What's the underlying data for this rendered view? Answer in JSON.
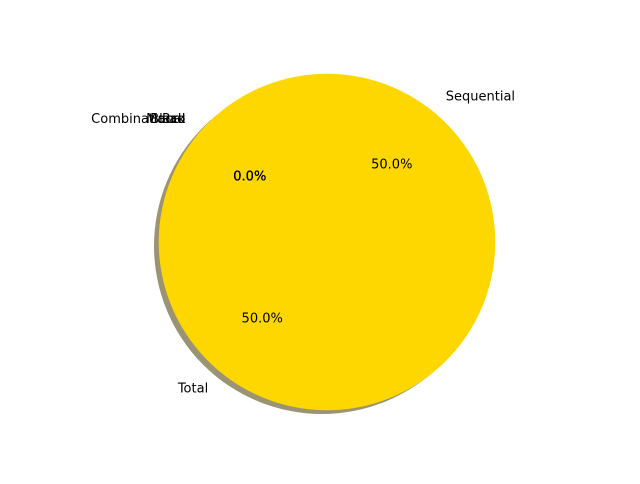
{
  "chart_data": {
    "type": "pie",
    "title": "",
    "shadow": true,
    "start_angle_deg": 140,
    "direction": "counterclockwise",
    "slices": [
      {
        "label": "Total",
        "value": 50.0,
        "pct_label": "50.0%",
        "color": "#ffd700"
      },
      {
        "label": "Sequential",
        "value": 50.0,
        "pct_label": "50.0%",
        "color": "#ffd700"
      },
      {
        "label": "Combinational",
        "value": 0.0,
        "pct_label": "0.0%",
        "color": "#ffd700"
      },
      {
        "label": "Macro",
        "value": 0.0,
        "pct_label": "0.0%",
        "color": "#ffd700"
      },
      {
        "label": "Pad",
        "value": 0.0,
        "pct_label": "0.0%",
        "color": "#ffd700"
      },
      {
        "label": "Black",
        "value": 0.0,
        "pct_label": "0.0%",
        "color": "#ffd700"
      }
    ],
    "shadow_color": "#9a9474"
  }
}
